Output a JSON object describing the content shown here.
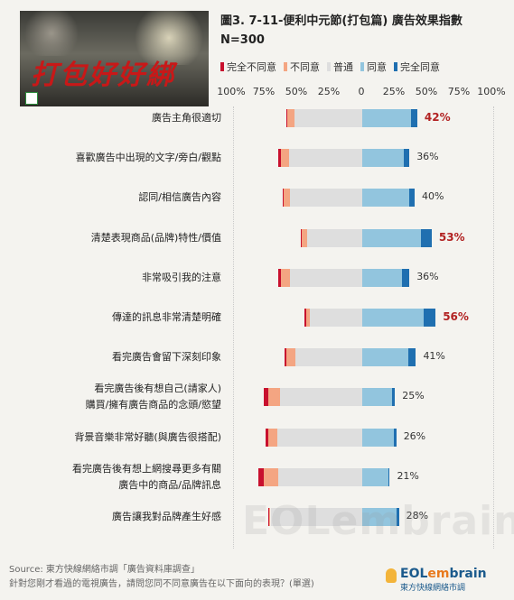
{
  "header": {
    "title": "圖3. 7-11-便利中元節(打包篇) 廣告效果指數",
    "subtitle": "N=300"
  },
  "colors": {
    "strongly_disagree": "#c8102e",
    "disagree": "#f4a582",
    "neutral": "#dedede",
    "agree": "#92c5de",
    "strongly_agree": "#1f6fb0",
    "highlight_text": "#b22222"
  },
  "chart_data": {
    "type": "bar",
    "subtype": "diverging-stacked-horizontal",
    "legend": [
      "完全不同意",
      "不同意",
      "普通",
      "同意",
      "完全同意"
    ],
    "legend_placement": "top",
    "x_tick_labels": [
      "100%",
      "75%",
      "50%",
      "25%",
      "0",
      "25%",
      "50%",
      "75%",
      "100%"
    ],
    "xlim": [
      -100,
      100
    ],
    "categories": [
      "廣告主角很適切",
      "喜歡廣告中出現的文字/旁白/觀點",
      "認同/相信廣告內容",
      "清楚表現商品(品牌)特性/價值",
      "非常吸引我的注意",
      "傳達的訊息非常清楚明確",
      "看完廣告會留下深刻印象",
      "看完廣告後有想自己(請家人)購買/擁有廣告商品的念頭/慾望",
      "背景音樂非常好聽(與廣告很搭配)",
      "看完廣告後有想上網搜尋更多有關廣告中的商品/品牌訊息",
      "廣告讓我對品牌產生好感"
    ],
    "category_label_lines": [
      [
        "廣告主角很適切"
      ],
      [
        "喜歡廣告中出現的文字/旁白/觀點"
      ],
      [
        "認同/相信廣告內容"
      ],
      [
        "清楚表現商品(品牌)特性/價值"
      ],
      [
        "非常吸引我的注意"
      ],
      [
        "傳達的訊息非常清楚明確"
      ],
      [
        "看完廣告會留下深刻印象"
      ],
      [
        "看完廣告後有想自己(請家人)",
        "購買/擁有廣告商品的念頭/慾望"
      ],
      [
        "背景音樂非常好聽(與廣告很搭配)"
      ],
      [
        "看完廣告後有想上網搜尋更多有關",
        "廣告中的商品/品牌訊息"
      ],
      [
        "廣告讓我對品牌產生好感"
      ]
    ],
    "series": [
      {
        "name": "完全不同意",
        "values": [
          1,
          2,
          1,
          1,
          2,
          1,
          1,
          3,
          2,
          4,
          1
        ]
      },
      {
        "name": "不同意",
        "values": [
          5,
          6,
          5,
          4,
          7,
          3,
          7,
          9,
          7,
          11,
          1
        ]
      },
      {
        "name": "普通",
        "values": [
          52,
          56,
          55,
          42,
          55,
          40,
          51,
          63,
          65,
          64,
          70
        ]
      },
      {
        "name": "同意",
        "values": [
          37,
          32,
          36,
          45,
          30,
          47,
          35,
          23,
          24,
          20,
          26
        ]
      },
      {
        "name": "完全同意",
        "values": [
          5,
          4,
          4,
          8,
          6,
          9,
          6,
          2,
          2,
          1,
          2
        ]
      }
    ],
    "agree_total_labels": [
      "42%",
      "36%",
      "40%",
      "53%",
      "36%",
      "56%",
      "41%",
      "25%",
      "26%",
      "21%",
      "28%"
    ],
    "highlighted": [
      true,
      false,
      false,
      true,
      false,
      true,
      false,
      false,
      false,
      false,
      false
    ]
  },
  "footer": {
    "source_line": "Source: 東方快線網絡市調「廣告資料庫調查」",
    "question_line": "針對您剛才看過的電視廣告，請問您同不同意廣告在以下面向的表現？(單選)",
    "brand_prefix": "EOL",
    "brand_em": "em",
    "brand_suffix": "brain",
    "brand_sub": "東方快線網絡市調"
  }
}
